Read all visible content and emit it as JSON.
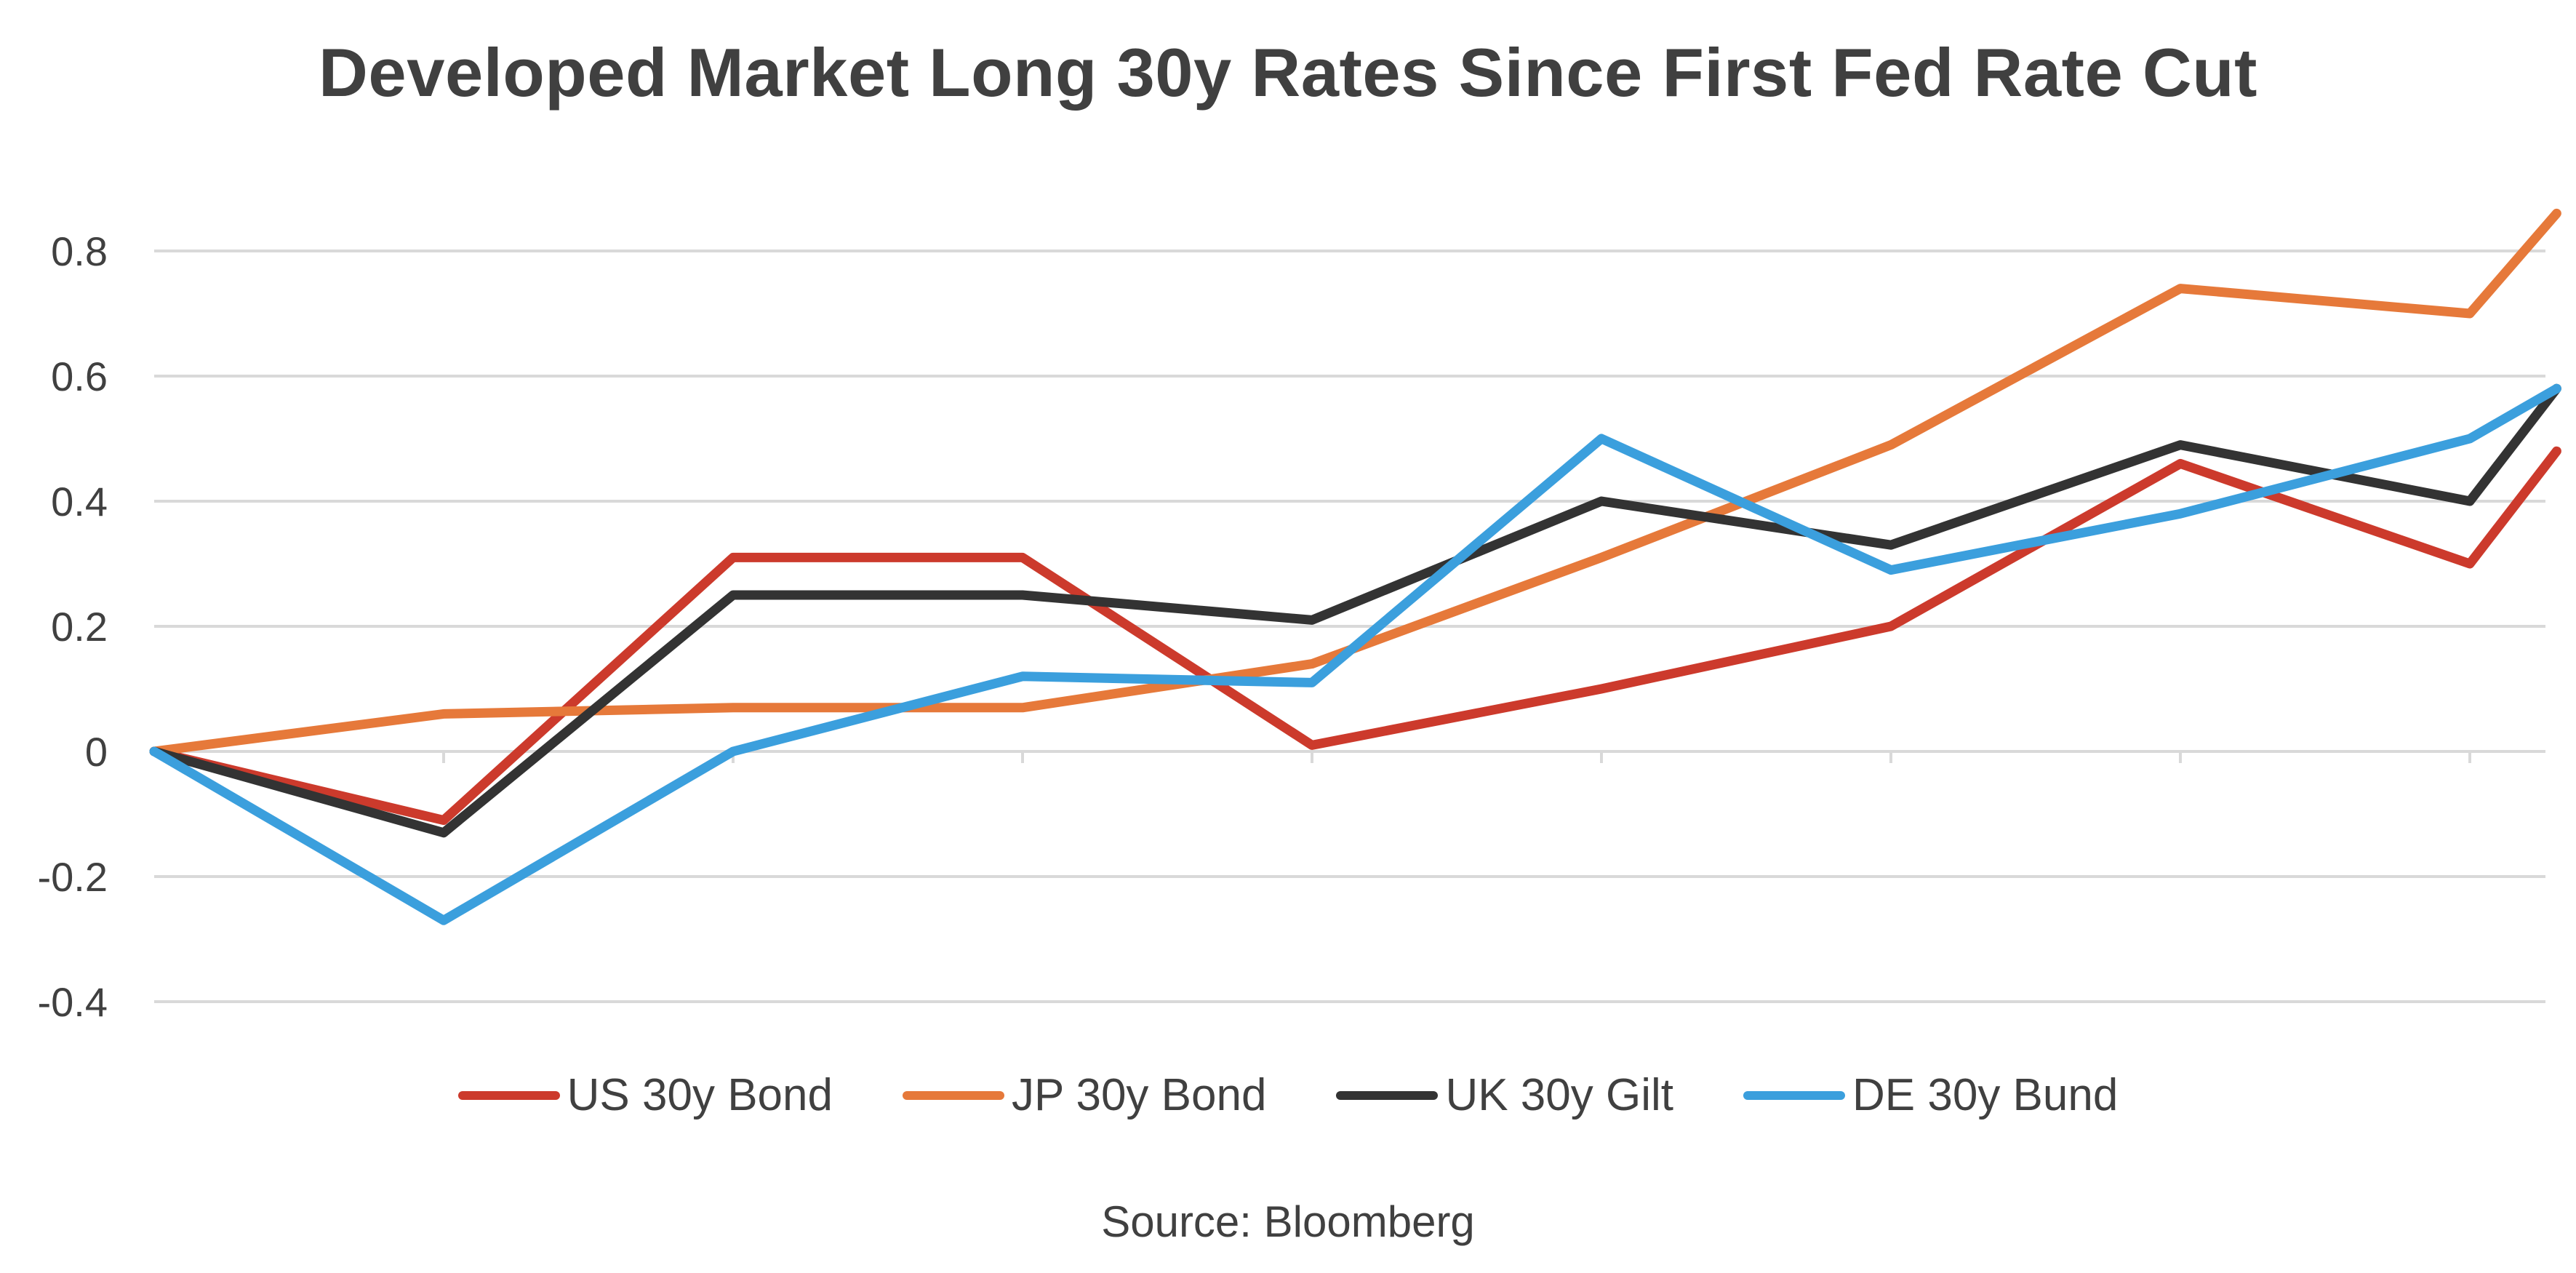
{
  "chart_data": {
    "type": "line",
    "title": "Developed Market Long 30y Rates Since First Fed Rate Cut",
    "xlabel": "",
    "ylabel": "",
    "ylim": [
      -0.4,
      0.8
    ],
    "yticks": [
      0.8,
      0.6,
      0.4,
      0.2,
      0,
      -0.2,
      -0.4
    ],
    "ytick_labels": [
      "0.8",
      "0.6",
      "0.4",
      "0.2",
      "0",
      "-0.2",
      "-0.4"
    ],
    "grid": true,
    "legend_position": "bottom",
    "x": [
      0,
      1,
      2,
      3,
      4,
      5,
      6,
      7,
      8,
      8.3
    ],
    "series": [
      {
        "name": "US 30y Bond",
        "color": "#cc3a2c",
        "values": [
          0,
          -0.11,
          0.31,
          0.31,
          0.01,
          0.1,
          0.2,
          0.46,
          0.3,
          0.48
        ]
      },
      {
        "name": "JP 30y Bond",
        "color": "#e6793a",
        "values": [
          0,
          0.06,
          0.07,
          0.07,
          0.14,
          0.31,
          0.49,
          0.74,
          0.7,
          0.86
        ]
      },
      {
        "name": "UK 30y Gilt",
        "color": "#333333",
        "values": [
          0,
          -0.13,
          0.25,
          0.25,
          0.21,
          0.4,
          0.33,
          0.49,
          0.4,
          0.58
        ]
      },
      {
        "name": "DE 30y Bund",
        "color": "#3b9fdd",
        "values": [
          0,
          -0.27,
          0,
          0.12,
          0.11,
          0.5,
          0.29,
          0.38,
          0.5,
          0.58
        ]
      }
    ],
    "source": "Source: Bloomberg"
  }
}
